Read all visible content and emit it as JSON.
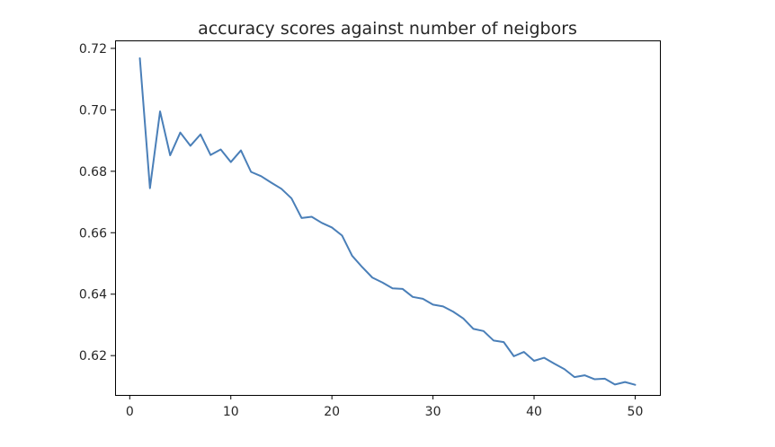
{
  "chart_data": {
    "type": "line",
    "title": "accuracy scores against number of neigbors",
    "xlabel": "",
    "ylabel": "",
    "xlim": [
      -1.45,
      52.45
    ],
    "ylim": [
      0.6072,
      0.7226
    ],
    "x_ticks": [
      0,
      10,
      20,
      30,
      40,
      50
    ],
    "y_ticks": [
      0.62,
      0.64,
      0.66,
      0.68,
      0.7,
      0.72
    ],
    "x_tick_labels": [
      "0",
      "10",
      "20",
      "30",
      "40",
      "50"
    ],
    "y_tick_labels": [
      "0.62",
      "0.64",
      "0.66",
      "0.68",
      "0.70",
      "0.72"
    ],
    "grid": false,
    "legend": "none",
    "series": [
      {
        "color": "#4a7fb8",
        "x": [
          1,
          2,
          3,
          4,
          5,
          6,
          7,
          8,
          9,
          10,
          11,
          12,
          13,
          14,
          15,
          16,
          17,
          18,
          19,
          20,
          21,
          22,
          23,
          24,
          25,
          26,
          27,
          28,
          29,
          30,
          31,
          32,
          33,
          34,
          35,
          36,
          37,
          38,
          39,
          40,
          41,
          42,
          43,
          44,
          45,
          46,
          47,
          48,
          49,
          50
        ],
        "values": [
          0.7168,
          0.6745,
          0.6995,
          0.6852,
          0.6926,
          0.6883,
          0.692,
          0.6853,
          0.6871,
          0.683,
          0.6868,
          0.6798,
          0.6784,
          0.6763,
          0.6743,
          0.6712,
          0.6648,
          0.6652,
          0.6632,
          0.6617,
          0.6591,
          0.6525,
          0.6488,
          0.6454,
          0.6438,
          0.6419,
          0.6417,
          0.6391,
          0.6385,
          0.6366,
          0.636,
          0.6343,
          0.6321,
          0.6287,
          0.628,
          0.6249,
          0.6244,
          0.6198,
          0.6212,
          0.6183,
          0.6193,
          0.6174,
          0.6156,
          0.613,
          0.6136,
          0.6123,
          0.6125,
          0.6106,
          0.6114,
          0.6105
        ]
      }
    ]
  }
}
